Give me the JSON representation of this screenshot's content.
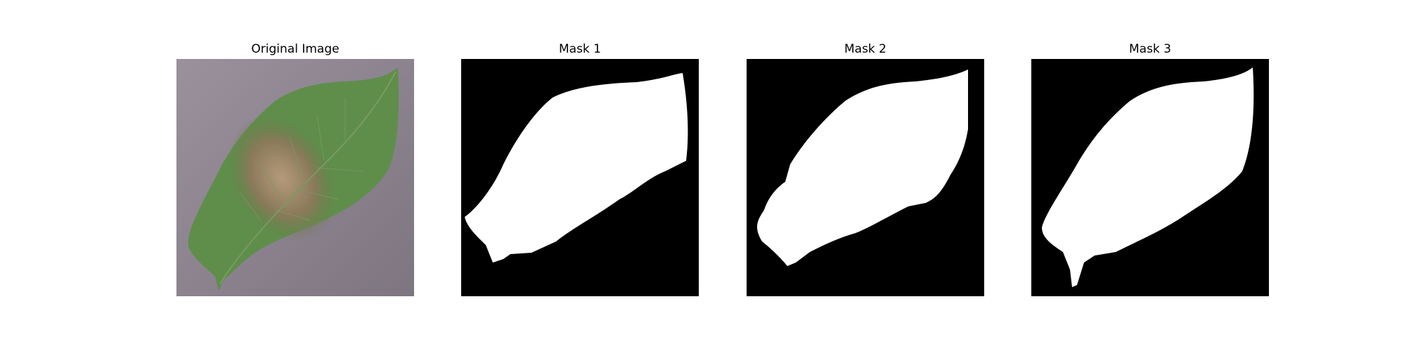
{
  "figure": {
    "panels": [
      {
        "title": "Original Image",
        "content": "leaf-photo"
      },
      {
        "title": "Mask 1",
        "content": "binary-mask"
      },
      {
        "title": "Mask 2",
        "content": "binary-mask"
      },
      {
        "title": "Mask 3",
        "content": "binary-mask"
      }
    ]
  },
  "colors": {
    "background": "#ffffff",
    "mask_background": "#000000",
    "mask_foreground": "#ffffff",
    "leaf_green": "#5d8c4a",
    "lesion_brown": "#9c8466",
    "table_surface": "#8d8590"
  }
}
